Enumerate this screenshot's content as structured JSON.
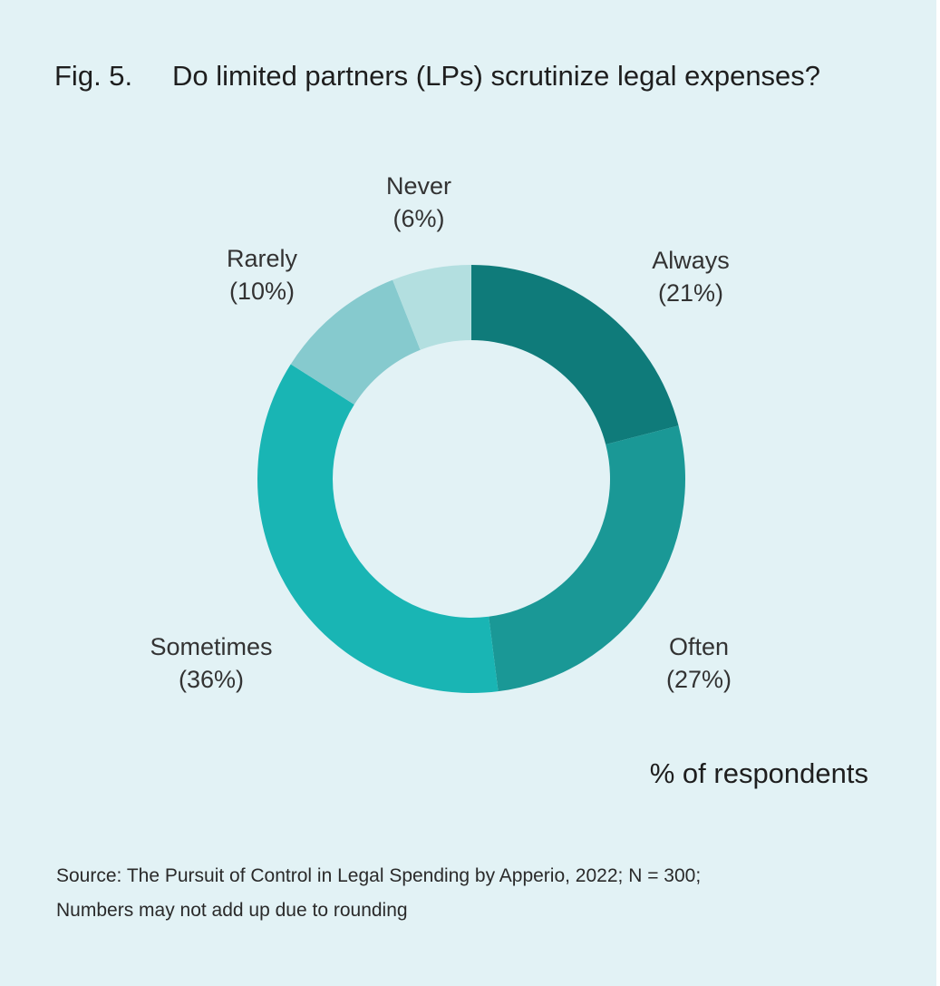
{
  "figure": {
    "number": "Fig. 5.",
    "title": "Do limited partners (LPs) scrutinize legal expenses?"
  },
  "unit_note": "% of respondents",
  "source": {
    "line1": "Source: The Pursuit of Control in Legal Spending by Apperio, 2022; N = 300;",
    "line2": "Numbers may not add up due to rounding"
  },
  "chart_data": {
    "type": "pie",
    "variant": "donut",
    "title": "Do limited partners (LPs) scrutinize legal expenses?",
    "unit": "% of respondents",
    "start": "12 o'clock",
    "direction": "clockwise",
    "slices": [
      {
        "label": "Always",
        "value": 21,
        "value_label": "(21%)",
        "color": "#0f7b7a"
      },
      {
        "label": "Often",
        "value": 27,
        "value_label": "(27%)",
        "color": "#1a9896"
      },
      {
        "label": "Sometimes",
        "value": 36,
        "value_label": "(36%)",
        "color": "#19b5b4"
      },
      {
        "label": "Rarely",
        "value": 10,
        "value_label": "(10%)",
        "color": "#86cace"
      },
      {
        "label": "Never",
        "value": 6,
        "value_label": "(6%)",
        "color": "#b3dfe0"
      }
    ]
  }
}
